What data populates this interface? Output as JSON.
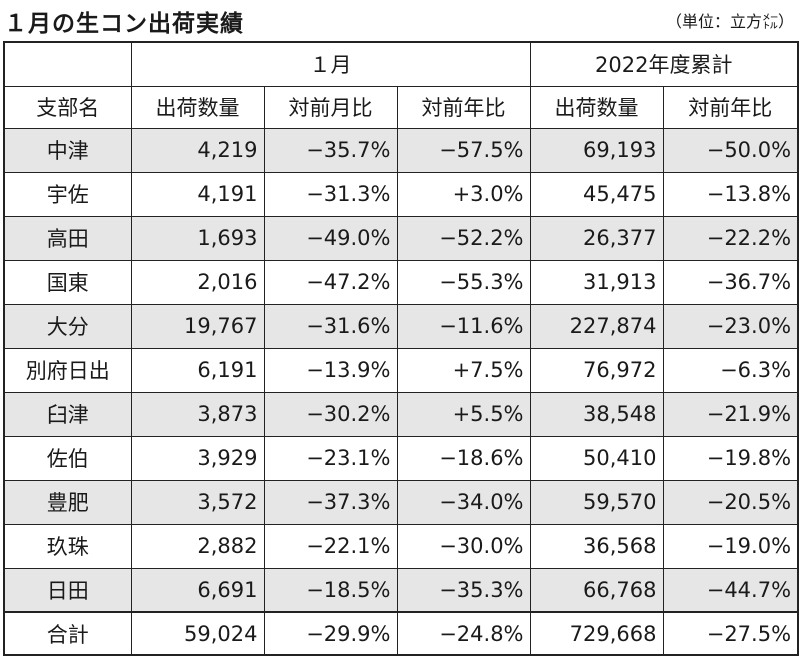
{
  "title": "１月の生コン出荷実績",
  "unit_note": "（単位：立方㍍）",
  "header": {
    "group_month": "１月",
    "group_cumulative": "2022年度累計",
    "col_branch": "支部名",
    "col_shipments": "出荷数量",
    "col_prev_month": "対前月比",
    "col_prev_year": "対前年比",
    "col_cum_shipments": "出荷数量",
    "col_cum_prev_year": "対前年比"
  },
  "rows": [
    {
      "name": "中津",
      "qty": "4,219",
      "mom": "−35.7%",
      "yoy": "−57.5%",
      "cum_qty": "69,193",
      "cum_yoy": "−50.0%"
    },
    {
      "name": "宇佐",
      "qty": "4,191",
      "mom": "−31.3%",
      "yoy": "+3.0%",
      "cum_qty": "45,475",
      "cum_yoy": "−13.8%"
    },
    {
      "name": "高田",
      "qty": "1,693",
      "mom": "−49.0%",
      "yoy": "−52.2%",
      "cum_qty": "26,377",
      "cum_yoy": "−22.2%"
    },
    {
      "name": "国東",
      "qty": "2,016",
      "mom": "−47.2%",
      "yoy": "−55.3%",
      "cum_qty": "31,913",
      "cum_yoy": "−36.7%"
    },
    {
      "name": "大分",
      "qty": "19,767",
      "mom": "−31.6%",
      "yoy": "−11.6%",
      "cum_qty": "227,874",
      "cum_yoy": "−23.0%"
    },
    {
      "name": "別府日出",
      "qty": "6,191",
      "mom": "−13.9%",
      "yoy": "+7.5%",
      "cum_qty": "76,972",
      "cum_yoy": "−6.3%"
    },
    {
      "name": "臼津",
      "qty": "3,873",
      "mom": "−30.2%",
      "yoy": "+5.5%",
      "cum_qty": "38,548",
      "cum_yoy": "−21.9%"
    },
    {
      "name": "佐伯",
      "qty": "3,929",
      "mom": "−23.1%",
      "yoy": "−18.6%",
      "cum_qty": "50,410",
      "cum_yoy": "−19.8%"
    },
    {
      "name": "豊肥",
      "qty": "3,572",
      "mom": "−37.3%",
      "yoy": "−34.0%",
      "cum_qty": "59,570",
      "cum_yoy": "−20.5%"
    },
    {
      "name": "玖珠",
      "qty": "2,882",
      "mom": "−22.1%",
      "yoy": "−30.0%",
      "cum_qty": "36,568",
      "cum_yoy": "−19.0%"
    },
    {
      "name": "日田",
      "qty": "6,691",
      "mom": "−18.5%",
      "yoy": "−35.3%",
      "cum_qty": "66,768",
      "cum_yoy": "−44.7%"
    }
  ],
  "total": {
    "name": "合計",
    "qty": "59,024",
    "mom": "−29.9%",
    "yoy": "−24.8%",
    "cum_qty": "729,668",
    "cum_yoy": "−27.5%"
  },
  "colors": {
    "shade": "#e6e6e6",
    "border": "#222222",
    "text": "#1a1a1a"
  }
}
